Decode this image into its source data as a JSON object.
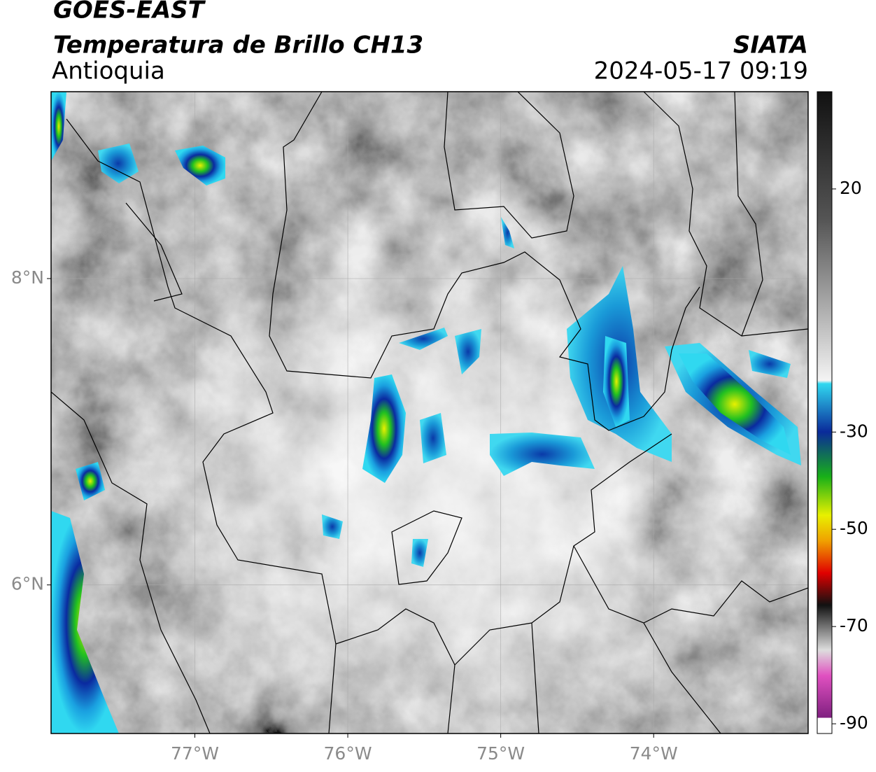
{
  "header": {
    "title": "GOES-EAST",
    "subtitle": "Temperatura de Brillo CH13",
    "region": "Antioquia",
    "source": "SIATA",
    "datetime": "2024-05-17 09:19"
  },
  "map": {
    "xlim": [
      -77.94,
      -72.99
    ],
    "ylim": [
      5.03,
      9.22
    ],
    "xticks": [
      {
        "value": -77,
        "label": "77°W"
      },
      {
        "value": -76,
        "label": "76°W"
      },
      {
        "value": -75,
        "label": "75°W"
      },
      {
        "value": -74,
        "label": "74°W"
      }
    ],
    "yticks": [
      {
        "value": 8,
        "label": "8°N"
      },
      {
        "value": 6,
        "label": "6°N"
      }
    ]
  },
  "colorbar": {
    "range": [
      -92,
      40
    ],
    "ticks": [
      20,
      -30,
      -50,
      -70,
      -90
    ]
  }
}
